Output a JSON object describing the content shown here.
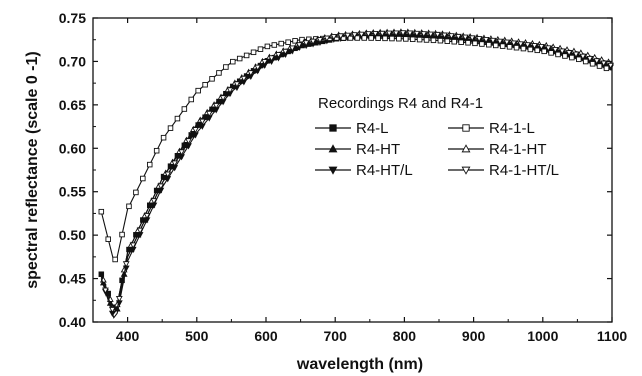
{
  "chart_data": {
    "type": "line",
    "title": "",
    "xlabel": "wavelength (nm)",
    "ylabel": "spectral reflectance (scale 0 -1)",
    "xlim": [
      350,
      1100
    ],
    "ylim": [
      0.4,
      0.75
    ],
    "xticks": [
      400,
      500,
      600,
      700,
      800,
      900,
      1000,
      1100
    ],
    "yticks": [
      0.4,
      0.45,
      0.5,
      0.55,
      0.6,
      0.65,
      0.7,
      0.75
    ],
    "xtick_labels": [
      "400",
      "500",
      "600",
      "700",
      "800",
      "900",
      "1000",
      "1100"
    ],
    "ytick_labels": [
      "0.40",
      "0.45",
      "0.50",
      "0.55",
      "0.60",
      "0.65",
      "0.70",
      "0.75"
    ],
    "legend_title": "Recordings R4 and R4-1",
    "legend_position": "center-right",
    "grid": false,
    "series": [
      {
        "name": "R4-L",
        "marker": "square",
        "filled": true,
        "x": [
          362,
          380,
          385,
          400,
          450,
          500,
          550,
          600,
          650,
          700,
          750,
          800,
          850,
          900,
          950,
          1000,
          1050,
          1100
        ],
        "y": [
          0.455,
          0.415,
          0.42,
          0.48,
          0.565,
          0.625,
          0.67,
          0.7,
          0.718,
          0.726,
          0.729,
          0.73,
          0.728,
          0.724,
          0.72,
          0.714,
          0.705,
          0.692
        ]
      },
      {
        "name": "R4-HT",
        "marker": "triangle-up",
        "filled": true,
        "x": [
          362,
          380,
          385,
          400,
          450,
          500,
          550,
          600,
          650,
          700,
          750,
          800,
          850,
          900,
          950,
          1000,
          1050,
          1100
        ],
        "y": [
          0.452,
          0.41,
          0.415,
          0.475,
          0.56,
          0.622,
          0.668,
          0.699,
          0.718,
          0.727,
          0.73,
          0.731,
          0.729,
          0.725,
          0.72,
          0.715,
          0.706,
          0.693
        ]
      },
      {
        "name": "R4-HT/L",
        "marker": "triangle-down",
        "filled": true,
        "x": [
          362,
          380,
          385,
          400,
          450,
          500,
          550,
          600,
          650,
          700,
          750,
          800,
          850,
          900,
          950,
          1000,
          1050,
          1100
        ],
        "y": [
          0.45,
          0.405,
          0.41,
          0.47,
          0.555,
          0.618,
          0.665,
          0.697,
          0.717,
          0.726,
          0.73,
          0.731,
          0.729,
          0.725,
          0.72,
          0.715,
          0.706,
          0.693
        ]
      },
      {
        "name": "R4-1-L",
        "marker": "square",
        "filled": false,
        "x": [
          362,
          380,
          385,
          400,
          450,
          500,
          550,
          600,
          650,
          700,
          750,
          800,
          850,
          900,
          950,
          1000,
          1050,
          1100
        ],
        "y": [
          0.527,
          0.47,
          0.475,
          0.53,
          0.61,
          0.665,
          0.699,
          0.717,
          0.725,
          0.727,
          0.727,
          0.726,
          0.724,
          0.721,
          0.717,
          0.712,
          0.703,
          0.69
        ]
      },
      {
        "name": "R4-1-HT",
        "marker": "triangle-up",
        "filled": false,
        "x": [
          362,
          380,
          385,
          400,
          450,
          500,
          550,
          600,
          650,
          700,
          750,
          800,
          850,
          900,
          950,
          1000,
          1050,
          1100
        ],
        "y": [
          0.455,
          0.415,
          0.42,
          0.48,
          0.565,
          0.628,
          0.672,
          0.703,
          0.721,
          0.73,
          0.733,
          0.734,
          0.732,
          0.728,
          0.724,
          0.719,
          0.711,
          0.698
        ]
      },
      {
        "name": "R4-1-HT/L",
        "marker": "triangle-down",
        "filled": false,
        "x": [
          362,
          380,
          385,
          400,
          450,
          500,
          550,
          600,
          650,
          700,
          750,
          800,
          850,
          900,
          950,
          1000,
          1050,
          1100
        ],
        "y": [
          0.45,
          0.41,
          0.415,
          0.475,
          0.56,
          0.624,
          0.669,
          0.701,
          0.72,
          0.729,
          0.732,
          0.733,
          0.731,
          0.727,
          0.722,
          0.717,
          0.708,
          0.695
        ]
      }
    ]
  }
}
